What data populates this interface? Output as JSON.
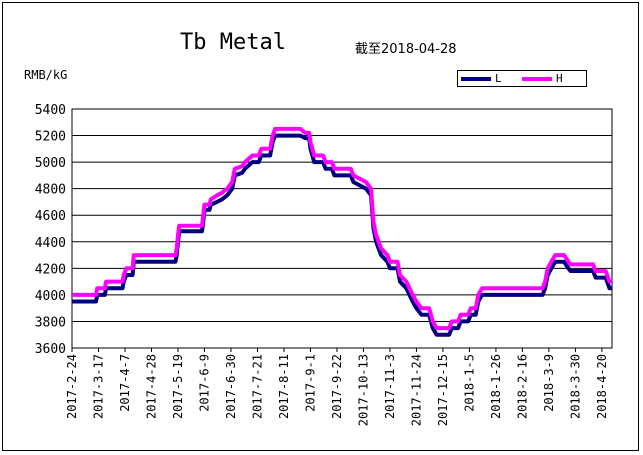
{
  "title": "Tb Metal",
  "date_label": "截至2018-04-28",
  "chart_data": {
    "type": "line",
    "ylabel": "RMB/kG",
    "ylim": [
      3600,
      5400
    ],
    "yticks": [
      3600,
      3800,
      4000,
      4200,
      4400,
      4600,
      4800,
      5000,
      5200,
      5400
    ],
    "grid": true,
    "legend_position": "top-right",
    "x_tick_labels": [
      "2017-2-24",
      "2017-3-17",
      "2017-4-7",
      "2017-4-28",
      "2017-5-19",
      "2017-6-9",
      "2017-6-30",
      "2017-7-21",
      "2017-8-11",
      "2017-9-1",
      "2017-9-22",
      "2017-10-13",
      "2017-11-3",
      "2017-11-24",
      "2017-12-15",
      "2018-1-5",
      "2018-1-26",
      "2018-2-16",
      "2018-3-9",
      "2018-3-30",
      "2018-4-20"
    ],
    "x_range": [
      "2017-2-24",
      "2018-4-28"
    ],
    "series": [
      {
        "name": "L",
        "color": "#00007f",
        "points": [
          [
            "2017-2-24",
            3950
          ],
          [
            "2017-3-15",
            3950
          ],
          [
            "2017-3-16",
            4000
          ],
          [
            "2017-3-22",
            4000
          ],
          [
            "2017-3-23",
            4050
          ],
          [
            "2017-4-5",
            4050
          ],
          [
            "2017-4-6",
            4100
          ],
          [
            "2017-4-8",
            4150
          ],
          [
            "2017-4-13",
            4150
          ],
          [
            "2017-4-14",
            4250
          ],
          [
            "2017-5-17",
            4250
          ],
          [
            "2017-5-18",
            4300
          ],
          [
            "2017-5-19",
            4400
          ],
          [
            "2017-5-20",
            4480
          ],
          [
            "2017-6-7",
            4480
          ],
          [
            "2017-6-8",
            4550
          ],
          [
            "2017-6-9",
            4640
          ],
          [
            "2017-6-13",
            4640
          ],
          [
            "2017-6-14",
            4680
          ],
          [
            "2017-6-19",
            4700
          ],
          [
            "2017-6-23",
            4720
          ],
          [
            "2017-6-27",
            4750
          ],
          [
            "2017-7-1",
            4800
          ],
          [
            "2017-7-3",
            4900
          ],
          [
            "2017-7-9",
            4920
          ],
          [
            "2017-7-11",
            4950
          ],
          [
            "2017-7-17",
            5000
          ],
          [
            "2017-7-22",
            5000
          ],
          [
            "2017-7-24",
            5050
          ],
          [
            "2017-7-31",
            5050
          ],
          [
            "2017-8-2",
            5150
          ],
          [
            "2017-8-4",
            5200
          ],
          [
            "2017-8-24",
            5200
          ],
          [
            "2017-8-28",
            5180
          ],
          [
            "2017-8-31",
            5180
          ],
          [
            "2017-9-1",
            5100
          ],
          [
            "2017-9-4",
            5000
          ],
          [
            "2017-9-11",
            5000
          ],
          [
            "2017-9-13",
            4950
          ],
          [
            "2017-9-18",
            4950
          ],
          [
            "2017-9-20",
            4900
          ],
          [
            "2017-10-3",
            4900
          ],
          [
            "2017-10-5",
            4850
          ],
          [
            "2017-10-11",
            4820
          ],
          [
            "2017-10-15",
            4800
          ],
          [
            "2017-10-19",
            4750
          ],
          [
            "2017-10-21",
            4500
          ],
          [
            "2017-10-23",
            4400
          ],
          [
            "2017-10-27",
            4300
          ],
          [
            "2017-11-1",
            4250
          ],
          [
            "2017-11-3",
            4200
          ],
          [
            "2017-11-9",
            4200
          ],
          [
            "2017-11-11",
            4100
          ],
          [
            "2017-11-16",
            4050
          ],
          [
            "2017-11-21",
            3950
          ],
          [
            "2017-11-24",
            3900
          ],
          [
            "2017-11-28",
            3850
          ],
          [
            "2017-12-4",
            3850
          ],
          [
            "2017-12-7",
            3750
          ],
          [
            "2017-12-10",
            3700
          ],
          [
            "2017-12-20",
            3700
          ],
          [
            "2017-12-22",
            3750
          ],
          [
            "2017-12-27",
            3750
          ],
          [
            "2017-12-29",
            3800
          ],
          [
            "2018-1-4",
            3800
          ],
          [
            "2018-1-6",
            3850
          ],
          [
            "2018-1-10",
            3850
          ],
          [
            "2018-1-12",
            3950
          ],
          [
            "2018-1-15",
            4000
          ],
          [
            "2018-3-4",
            4000
          ],
          [
            "2018-3-6",
            4050
          ],
          [
            "2018-3-8",
            4150
          ],
          [
            "2018-3-11",
            4200
          ],
          [
            "2018-3-14",
            4250
          ],
          [
            "2018-3-21",
            4250
          ],
          [
            "2018-3-23",
            4220
          ],
          [
            "2018-3-26",
            4180
          ],
          [
            "2018-4-13",
            4180
          ],
          [
            "2018-4-15",
            4130
          ],
          [
            "2018-4-23",
            4130
          ],
          [
            "2018-4-26",
            4050
          ],
          [
            "2018-4-28",
            4050
          ]
        ]
      },
      {
        "name": "H",
        "color": "#ff00ff",
        "points": [
          [
            "2017-2-24",
            4000
          ],
          [
            "2017-3-15",
            4000
          ],
          [
            "2017-3-16",
            4050
          ],
          [
            "2017-3-22",
            4050
          ],
          [
            "2017-3-23",
            4100
          ],
          [
            "2017-4-5",
            4100
          ],
          [
            "2017-4-6",
            4150
          ],
          [
            "2017-4-8",
            4200
          ],
          [
            "2017-4-13",
            4200
          ],
          [
            "2017-4-14",
            4300
          ],
          [
            "2017-5-17",
            4300
          ],
          [
            "2017-5-18",
            4350
          ],
          [
            "2017-5-19",
            4450
          ],
          [
            "2017-5-20",
            4520
          ],
          [
            "2017-6-7",
            4520
          ],
          [
            "2017-6-8",
            4600
          ],
          [
            "2017-6-9",
            4680
          ],
          [
            "2017-6-13",
            4680
          ],
          [
            "2017-6-14",
            4720
          ],
          [
            "2017-6-19",
            4750
          ],
          [
            "2017-6-23",
            4770
          ],
          [
            "2017-6-27",
            4800
          ],
          [
            "2017-7-1",
            4850
          ],
          [
            "2017-7-3",
            4950
          ],
          [
            "2017-7-9",
            4970
          ],
          [
            "2017-7-11",
            5000
          ],
          [
            "2017-7-17",
            5050
          ],
          [
            "2017-7-22",
            5050
          ],
          [
            "2017-7-24",
            5100
          ],
          [
            "2017-7-31",
            5100
          ],
          [
            "2017-8-2",
            5200
          ],
          [
            "2017-8-4",
            5250
          ],
          [
            "2017-8-24",
            5250
          ],
          [
            "2017-8-28",
            5220
          ],
          [
            "2017-8-31",
            5220
          ],
          [
            "2017-9-1",
            5150
          ],
          [
            "2017-9-4",
            5050
          ],
          [
            "2017-9-11",
            5050
          ],
          [
            "2017-9-13",
            5000
          ],
          [
            "2017-9-18",
            5000
          ],
          [
            "2017-9-20",
            4950
          ],
          [
            "2017-10-3",
            4950
          ],
          [
            "2017-10-5",
            4900
          ],
          [
            "2017-10-11",
            4870
          ],
          [
            "2017-10-15",
            4850
          ],
          [
            "2017-10-19",
            4800
          ],
          [
            "2017-10-21",
            4550
          ],
          [
            "2017-10-23",
            4450
          ],
          [
            "2017-10-27",
            4350
          ],
          [
            "2017-11-1",
            4300
          ],
          [
            "2017-11-3",
            4250
          ],
          [
            "2017-11-9",
            4250
          ],
          [
            "2017-11-11",
            4150
          ],
          [
            "2017-11-16",
            4100
          ],
          [
            "2017-11-21",
            4000
          ],
          [
            "2017-11-24",
            3950
          ],
          [
            "2017-11-28",
            3900
          ],
          [
            "2017-12-4",
            3900
          ],
          [
            "2017-12-7",
            3800
          ],
          [
            "2017-12-10",
            3750
          ],
          [
            "2017-12-20",
            3750
          ],
          [
            "2017-12-22",
            3800
          ],
          [
            "2017-12-27",
            3800
          ],
          [
            "2017-12-29",
            3850
          ],
          [
            "2018-1-4",
            3850
          ],
          [
            "2018-1-6",
            3900
          ],
          [
            "2018-1-10",
            3900
          ],
          [
            "2018-1-12",
            4000
          ],
          [
            "2018-1-15",
            4050
          ],
          [
            "2018-3-4",
            4050
          ],
          [
            "2018-3-6",
            4100
          ],
          [
            "2018-3-8",
            4200
          ],
          [
            "2018-3-11",
            4250
          ],
          [
            "2018-3-14",
            4300
          ],
          [
            "2018-3-21",
            4300
          ],
          [
            "2018-3-23",
            4270
          ],
          [
            "2018-3-26",
            4230
          ],
          [
            "2018-4-13",
            4230
          ],
          [
            "2018-4-15",
            4180
          ],
          [
            "2018-4-23",
            4180
          ],
          [
            "2018-4-26",
            4100
          ],
          [
            "2018-4-28",
            4100
          ]
        ]
      }
    ]
  }
}
